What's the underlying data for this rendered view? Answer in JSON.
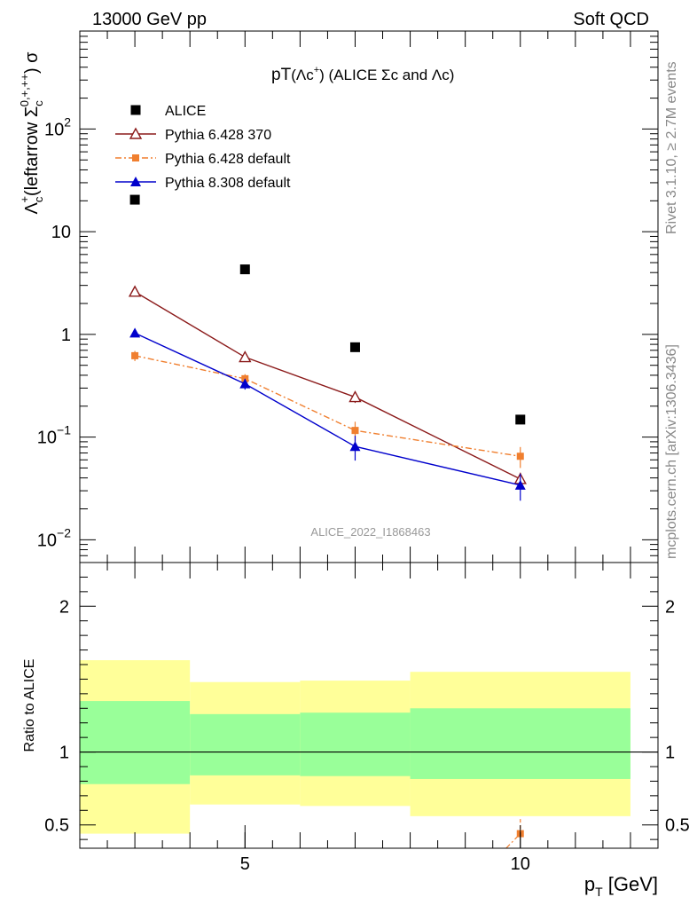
{
  "header": {
    "left": "13000 GeV pp",
    "right": "Soft QCD"
  },
  "side": {
    "rivet": "Rivet 3.1.10, ≥ 2.7M events",
    "mcplots": "mcplots.cern.ch [arXiv:1306.3436]"
  },
  "watermark": "ALICE_2022_I1868463",
  "chart_data": [
    {
      "type": "scatter",
      "title": "pT(Λc⁺) (ALICE Σc and Λc)",
      "ylabel": "Λc⁺(leftarrow Σc⁰ʸ⁺ʸ⁺⁺) σ",
      "ylabel_parts": {
        "base": "Λ",
        "sub": "c",
        "sup": "+",
        "mid": "(leftarrow Σ",
        "sub2": "c",
        "sup2": "0,+,++",
        "end": ") σ"
      },
      "yscale": "log",
      "ylim": [
        0.006,
        900
      ],
      "xlim": [
        2,
        12.5
      ],
      "ytick_labels": [
        {
          "value": 0.01,
          "base": "10",
          "exp": "−2"
        },
        {
          "value": 0.1,
          "base": "10",
          "exp": "−1"
        },
        {
          "value": 1,
          "base": "1",
          "exp": ""
        },
        {
          "value": 10,
          "base": "10",
          "exp": ""
        },
        {
          "value": 100,
          "base": "10",
          "exp": "2"
        }
      ],
      "legend_position": "top-left",
      "series": [
        {
          "name": "ALICE",
          "color": "#000000",
          "marker": "square",
          "line": "none",
          "x": [
            3,
            5,
            7,
            10
          ],
          "y": [
            20.5,
            4.3,
            0.75,
            0.148
          ]
        },
        {
          "name": "Pythia 6.428 370",
          "color": "#8b1a1a",
          "marker": "triangle-open",
          "line": "solid",
          "x": [
            3,
            5,
            7,
            10
          ],
          "y": [
            2.6,
            0.6,
            0.245,
            0.039
          ],
          "yerr": [
            0.12,
            0.05,
            0.03,
            0.006
          ]
        },
        {
          "name": "Pythia 6.428 default",
          "color": "#f07f2f",
          "marker": "square-small",
          "line": "dashdot",
          "x": [
            3,
            5,
            7,
            10
          ],
          "y": [
            0.62,
            0.37,
            0.116,
            0.065
          ],
          "yerr": [
            0.07,
            0.04,
            0.025,
            0.015
          ]
        },
        {
          "name": "Pythia 8.308 default",
          "color": "#0000cc",
          "marker": "triangle",
          "line": "solid",
          "x": [
            3,
            5,
            7,
            10
          ],
          "y": [
            1.03,
            0.33,
            0.081,
            0.034
          ],
          "yerr": [
            0.04,
            0.04,
            0.022,
            0.01
          ]
        }
      ]
    },
    {
      "type": "area",
      "ylabel": "Ratio to ALICE",
      "xlabel": "p",
      "xlabel_sub": "T",
      "xlabel_unit": " [GeV]",
      "xlim": [
        2,
        12.5
      ],
      "ylim": [
        0.34,
        2.3
      ],
      "xticks": [
        5,
        10
      ],
      "yticks": [
        0.5,
        1,
        2
      ],
      "reference_line": 1,
      "bands": [
        {
          "x": [
            2,
            4
          ],
          "yellow": [
            0.44,
            1.63
          ],
          "green": [
            0.78,
            1.35
          ]
        },
        {
          "x": [
            4,
            6
          ],
          "yellow": [
            0.64,
            1.48
          ],
          "green": [
            0.84,
            1.26
          ]
        },
        {
          "x": [
            6,
            8
          ],
          "yellow": [
            0.63,
            1.49
          ],
          "green": [
            0.835,
            1.27
          ]
        },
        {
          "x": [
            8,
            12
          ],
          "yellow": [
            0.56,
            1.55
          ],
          "green": [
            0.815,
            1.3
          ]
        }
      ],
      "series": [
        {
          "name": "Pythia 6.428 default",
          "color": "#f07f2f",
          "x": [
            10
          ],
          "y": [
            0.44
          ],
          "yerr": [
            0.1
          ]
        }
      ]
    }
  ]
}
